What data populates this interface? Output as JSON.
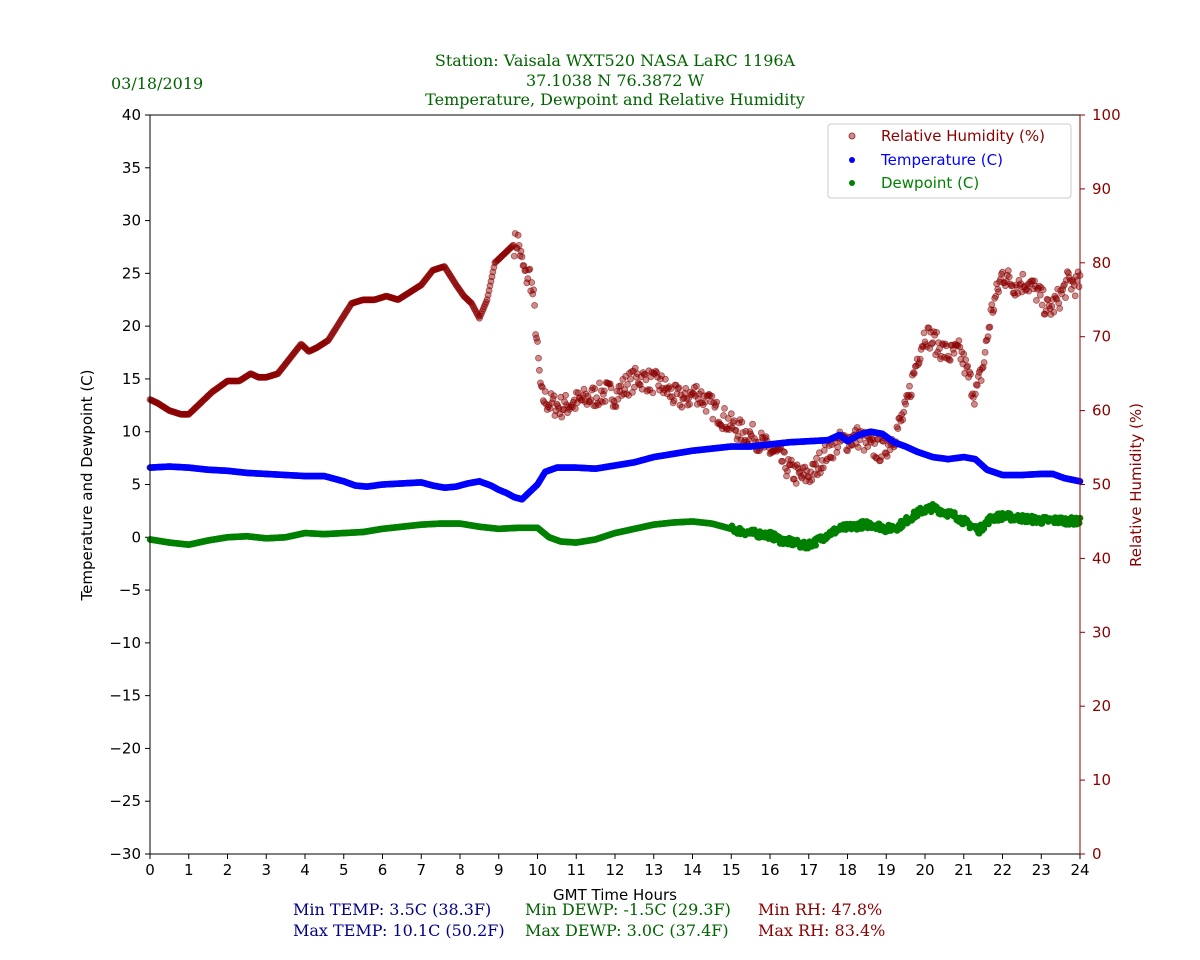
{
  "header": {
    "date": "03/18/2019",
    "title_line1": "Station:  Vaisala WXT520  NASA LaRC 1196A",
    "title_line2": "37.1038 N 76.3872 W",
    "title_line3": "Temperature, Dewpoint and Relative Humidity"
  },
  "stats": {
    "min_temp": "Min TEMP: 3.5C (38.3F)",
    "max_temp": "Max TEMP: 10.1C (50.2F)",
    "min_dewp": "Min DEWP: -1.5C (29.3F)",
    "max_dewp": "Max DEWP: 3.0C (37.4F)",
    "min_rh": "Min RH: 47.8%",
    "max_rh": "Max RH: 83.4%"
  },
  "colors": {
    "temperature": "#0000ff",
    "dewpoint": "#008000",
    "rh": "#8b0000",
    "title": "#006400",
    "stat_temp": "#00008b"
  },
  "chart_data": {
    "type": "scatter",
    "xlabel": "GMT Time Hours",
    "ylabel": "Temperature and Dewpoint (C)",
    "y2label": "Relative Humidity (%)",
    "xlim": [
      0,
      24
    ],
    "ylim": [
      -30,
      40
    ],
    "y2lim": [
      0,
      100
    ],
    "xticks": [
      0,
      1,
      2,
      3,
      4,
      5,
      6,
      7,
      8,
      9,
      10,
      11,
      12,
      13,
      14,
      15,
      16,
      17,
      18,
      19,
      20,
      21,
      22,
      23,
      24
    ],
    "yticks": [
      -30,
      -25,
      -20,
      -15,
      -10,
      -5,
      0,
      5,
      10,
      15,
      20,
      25,
      30,
      35,
      40
    ],
    "y2ticks": [
      0,
      10,
      20,
      30,
      40,
      50,
      60,
      70,
      80,
      90,
      100
    ],
    "legend": {
      "position": "top-right",
      "entries": [
        "Relative Humidity (%)",
        "Temperature (C)",
        "Dewpoint (C)"
      ]
    },
    "series": [
      {
        "name": "Relative Humidity (%)",
        "axis": "right",
        "color": "#8b0000",
        "x": [
          0,
          0.2,
          0.5,
          0.8,
          1.0,
          1.3,
          1.6,
          2.0,
          2.3,
          2.6,
          2.8,
          3.0,
          3.3,
          3.6,
          3.9,
          4.1,
          4.3,
          4.6,
          4.9,
          5.2,
          5.5,
          5.8,
          6.1,
          6.4,
          6.7,
          7.0,
          7.3,
          7.6,
          7.9,
          8.1,
          8.3,
          8.5,
          8.7,
          8.9,
          9.1,
          9.3,
          9.5,
          9.6,
          9.7,
          9.8,
          9.9,
          10.0,
          10.1,
          10.3,
          10.6,
          10.9,
          11.2,
          11.5,
          11.8,
          12.0,
          12.3,
          12.6,
          12.9,
          13.2,
          13.5,
          13.8,
          14.1,
          14.4,
          14.7,
          15.0,
          15.3,
          15.6,
          15.9,
          16.2,
          16.5,
          16.8,
          17.1,
          17.4,
          17.7,
          18.0,
          18.3,
          18.6,
          18.9,
          19.2,
          19.5,
          19.8,
          20.0,
          20.3,
          20.6,
          20.9,
          21.1,
          21.3,
          21.5,
          21.7,
          22.0,
          22.3,
          22.6,
          22.9,
          23.2,
          23.5,
          23.7,
          23.9,
          24.0
        ],
        "y": [
          61.5,
          61.0,
          60.0,
          59.5,
          59.5,
          61.0,
          62.5,
          64.0,
          64.0,
          65.0,
          64.5,
          64.5,
          65.0,
          67.0,
          69.0,
          68.0,
          68.5,
          69.5,
          72.0,
          74.5,
          75.0,
          75.0,
          75.5,
          75.0,
          76.0,
          77.0,
          79.0,
          79.5,
          77.0,
          75.5,
          74.5,
          72.5,
          75.0,
          80.0,
          81.0,
          82.0,
          83.0,
          80.0,
          78.0,
          78.5,
          75.0,
          68.0,
          62.0,
          61.0,
          60.5,
          61.0,
          61.5,
          62.0,
          62.5,
          62.0,
          63.5,
          64.5,
          64.0,
          63.5,
          62.0,
          61.5,
          62.5,
          61.0,
          59.5,
          58.0,
          57.0,
          56.5,
          55.0,
          54.0,
          52.0,
          51.0,
          51.5,
          54.0,
          55.5,
          56.0,
          56.5,
          55.0,
          54.5,
          56.5,
          60.0,
          67.0,
          70.5,
          69.0,
          67.5,
          68.0,
          65.0,
          62.0,
          66.0,
          73.0,
          78.5,
          77.0,
          77.5,
          76.0,
          73.5,
          75.5,
          77.5,
          77.0,
          77.5
        ]
      },
      {
        "name": "Temperature (C)",
        "axis": "left",
        "color": "#0000ff",
        "x": [
          0,
          0.5,
          1.0,
          1.5,
          2.0,
          2.5,
          3.0,
          3.5,
          4.0,
          4.5,
          5.0,
          5.3,
          5.6,
          6.0,
          6.5,
          7.0,
          7.3,
          7.6,
          7.9,
          8.2,
          8.5,
          8.8,
          9.0,
          9.2,
          9.4,
          9.6,
          9.8,
          10.0,
          10.2,
          10.5,
          11.0,
          11.5,
          12.0,
          12.5,
          13.0,
          13.5,
          14.0,
          14.5,
          15.0,
          15.5,
          16.0,
          16.5,
          17.0,
          17.5,
          17.8,
          18.0,
          18.3,
          18.6,
          18.9,
          19.2,
          19.5,
          19.8,
          20.2,
          20.6,
          21.0,
          21.3,
          21.6,
          22.0,
          22.5,
          23.0,
          23.3,
          23.6,
          24.0
        ],
        "y": [
          6.6,
          6.7,
          6.6,
          6.4,
          6.3,
          6.1,
          6.0,
          5.9,
          5.8,
          5.8,
          5.3,
          4.9,
          4.8,
          5.0,
          5.1,
          5.2,
          4.9,
          4.7,
          4.8,
          5.1,
          5.3,
          4.9,
          4.5,
          4.2,
          3.8,
          3.6,
          4.3,
          5.0,
          6.2,
          6.6,
          6.6,
          6.5,
          6.8,
          7.1,
          7.6,
          7.9,
          8.2,
          8.4,
          8.6,
          8.6,
          8.8,
          9.0,
          9.1,
          9.2,
          9.7,
          9.1,
          9.7,
          10.0,
          9.8,
          9.0,
          8.6,
          8.1,
          7.6,
          7.4,
          7.6,
          7.4,
          6.4,
          5.9,
          5.9,
          6.0,
          6.0,
          5.6,
          5.3
        ]
      },
      {
        "name": "Dewpoint (C)",
        "axis": "left",
        "color": "#008000",
        "x": [
          0,
          0.5,
          1.0,
          1.5,
          2.0,
          2.5,
          3.0,
          3.5,
          4.0,
          4.5,
          5.0,
          5.5,
          6.0,
          6.5,
          7.0,
          7.5,
          8.0,
          8.5,
          9.0,
          9.5,
          10.0,
          10.3,
          10.6,
          11.0,
          11.5,
          12.0,
          12.5,
          13.0,
          13.5,
          14.0,
          14.5,
          15.0,
          15.5,
          16.0,
          16.3,
          16.6,
          16.9,
          17.2,
          17.5,
          17.8,
          18.1,
          18.4,
          18.7,
          19.0,
          19.3,
          19.6,
          19.9,
          20.2,
          20.5,
          20.8,
          21.1,
          21.4,
          21.7,
          22.0,
          22.5,
          23.0,
          23.5,
          24.0
        ],
        "y": [
          -0.2,
          -0.5,
          -0.7,
          -0.3,
          0.0,
          0.1,
          -0.1,
          0.0,
          0.4,
          0.3,
          0.4,
          0.5,
          0.8,
          1.0,
          1.2,
          1.3,
          1.3,
          1.0,
          0.8,
          0.9,
          0.9,
          0.0,
          -0.4,
          -0.5,
          -0.2,
          0.4,
          0.8,
          1.2,
          1.4,
          1.5,
          1.3,
          0.8,
          0.4,
          0.2,
          -0.3,
          -0.5,
          -0.8,
          -0.4,
          0.3,
          0.8,
          1.0,
          1.2,
          1.2,
          0.8,
          1.0,
          1.8,
          2.5,
          2.8,
          2.4,
          2.0,
          1.3,
          0.7,
          1.8,
          2.0,
          1.8,
          1.6,
          1.6,
          1.5
        ]
      }
    ]
  }
}
